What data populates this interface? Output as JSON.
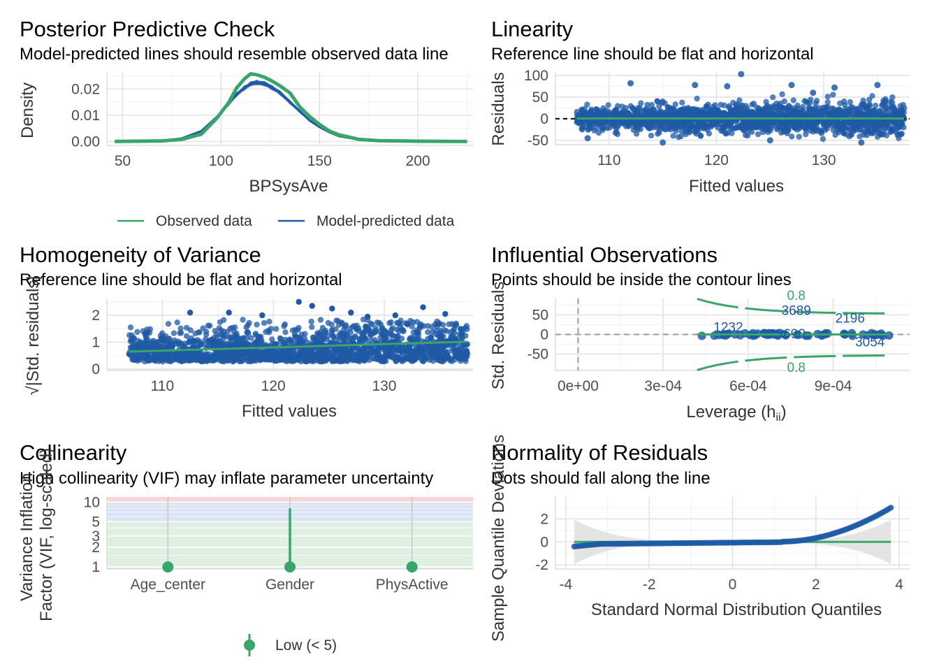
{
  "colors": {
    "green": "#3aa56b",
    "blue": "#1f5aa6",
    "red_zone": "#f6d6d6",
    "blue_zone": "#dbe4f3",
    "green_zone": "#dff0e3"
  },
  "chart_data": [
    {
      "id": "ppc",
      "type": "line",
      "title": "Posterior Predictive Check",
      "subtitle": "Model-predicted lines should resemble observed data line",
      "xlabel": "BPSysAve",
      "ylabel": "Density",
      "xlim": [
        42,
        228
      ],
      "ylim": [
        -0.0015,
        0.0265
      ],
      "xticks": [
        50,
        100,
        150,
        200
      ],
      "xtick_labels": [
        "50",
        "100",
        "150",
        "200"
      ],
      "yticks": [
        0.0,
        0.01,
        0.02
      ],
      "ytick_labels": [
        "0.00",
        "0.01",
        "0.02"
      ],
      "legend_position": "bottom",
      "series": [
        {
          "name": "Observed data",
          "x": [
            46,
            70,
            80,
            90,
            98,
            104,
            108,
            112,
            115,
            118,
            122,
            126,
            130,
            135,
            140,
            145,
            150,
            155,
            160,
            170,
            180,
            200,
            225
          ],
          "y": [
            0,
            0.0002,
            0.0008,
            0.0028,
            0.009,
            0.015,
            0.0205,
            0.024,
            0.0258,
            0.0255,
            0.0245,
            0.023,
            0.0212,
            0.0185,
            0.0132,
            0.0095,
            0.0065,
            0.004,
            0.0025,
            0.0008,
            0.0003,
            0.0001,
            0
          ]
        },
        {
          "name": "Model-predicted data",
          "x": [
            46,
            70,
            80,
            90,
            98,
            104,
            108,
            112,
            115,
            118,
            122,
            126,
            130,
            135,
            140,
            145,
            150,
            155,
            160,
            170,
            180,
            200,
            225
          ],
          "y": [
            0,
            0.0003,
            0.0012,
            0.004,
            0.0095,
            0.0145,
            0.018,
            0.0205,
            0.022,
            0.0225,
            0.022,
            0.0205,
            0.0185,
            0.015,
            0.0115,
            0.008,
            0.0055,
            0.0035,
            0.002,
            0.0007,
            0.0002,
            5e-05,
            0
          ]
        }
      ]
    },
    {
      "id": "linearity",
      "type": "scatter",
      "title": "Linearity",
      "subtitle": "Reference line should be flat and horizontal",
      "xlabel": "Fitted values",
      "ylabel": "Residuals",
      "xlim": [
        105,
        138
      ],
      "ylim": [
        -60,
        108
      ],
      "xticks": [
        110,
        120,
        130
      ],
      "xtick_labels": [
        "110",
        "120",
        "130"
      ],
      "yticks": [
        -50,
        0,
        50,
        100
      ],
      "ytick_labels": [
        "-50",
        "0",
        "50",
        "100"
      ],
      "reference_line": 0,
      "outliers": [
        [
          112,
          82
        ],
        [
          115,
          -55
        ],
        [
          118,
          78
        ],
        [
          121,
          75
        ],
        [
          122.3,
          103
        ],
        [
          125,
          -50
        ],
        [
          127,
          78
        ],
        [
          133.5,
          -55
        ],
        [
          131,
          72
        ],
        [
          135,
          78
        ],
        [
          108,
          -45
        ],
        [
          129,
          60
        ]
      ]
    },
    {
      "id": "homogeneity",
      "type": "scatter",
      "title": "Homogeneity of Variance",
      "subtitle": "Reference line should be flat and horizontal",
      "xlabel": "Fitted values",
      "ylabel": "√|Std. residuals|",
      "xlim": [
        105,
        138
      ],
      "ylim": [
        -0.05,
        2.6
      ],
      "xticks": [
        110,
        120,
        130
      ],
      "xtick_labels": [
        "110",
        "120",
        "130"
      ],
      "yticks": [
        0,
        1,
        2
      ],
      "ytick_labels": [
        "0",
        "1",
        "2"
      ],
      "trend": {
        "x": [
          107,
          137.5
        ],
        "y": [
          0.65,
          1.02
        ]
      },
      "outliers": [
        [
          112.5,
          2.1
        ],
        [
          116,
          2.1
        ],
        [
          119,
          2.0
        ],
        [
          122.3,
          2.5
        ],
        [
          123.5,
          2.35
        ],
        [
          125.3,
          2.25
        ],
        [
          127,
          2.1
        ],
        [
          131,
          2.0
        ],
        [
          133.5,
          2.3
        ],
        [
          135.5,
          2.05
        ],
        [
          128.5,
          1.95
        ]
      ]
    },
    {
      "id": "influential",
      "type": "scatter",
      "title": "Influential Observations",
      "subtitle": "Points should be inside the contour lines",
      "xlabel": "Leverage (h",
      "xlabel_sub": "ii",
      "xlabel_end": ")",
      "ylabel": "Std. Residuals",
      "xlim": [
        -8e-05,
        0.00117
      ],
      "ylim": [
        -92,
        92
      ],
      "xticks": [
        0,
        0.0003,
        0.0006,
        0.0009
      ],
      "xtick_labels": [
        "0e+00",
        "3e-04",
        "6e-04",
        "9e-04"
      ],
      "yticks": [
        -50,
        0,
        50
      ],
      "ytick_labels": [
        "-50",
        "0",
        "50"
      ],
      "point_range": [
        0.00042,
        0.0011
      ],
      "labels": [
        {
          "text": "1232",
          "x": 0.00053,
          "y": 7
        },
        {
          "text": "3689",
          "x": 0.00077,
          "y": 50
        },
        {
          "text": "2196",
          "x": 0.00096,
          "y": 30
        },
        {
          "text": "3690",
          "x": 0.00075,
          "y": -10
        },
        {
          "text": "3054",
          "x": 0.00103,
          "y": -30
        }
      ],
      "contour_labels": [
        "0.8",
        "0.8"
      ]
    },
    {
      "id": "collinearity",
      "type": "scatter",
      "title": "Collinearity",
      "subtitle": "High collinearity (VIF) may inflate parameter uncertainty",
      "xlabel": "",
      "ylabel": "Variance Inflation\nFactor (VIF, log-scaled)",
      "categories": [
        "Age_center",
        "Gender",
        "PhysActive"
      ],
      "vif": [
        1.0,
        1.0,
        1.0
      ],
      "ci_upper": [
        1.0,
        8.0,
        1.0
      ],
      "yscale": "log",
      "ylim": [
        0.93,
        12
      ],
      "yticks": [
        1,
        2,
        3,
        5,
        10
      ],
      "ytick_labels": [
        "1",
        "2",
        "3",
        "5",
        "10"
      ],
      "zones": {
        "low_max": 5,
        "moderate_max": 10
      },
      "legend": "Low (< 5)"
    },
    {
      "id": "normality",
      "type": "scatter",
      "title": "Normality of Residuals",
      "subtitle": "Dots should fall along the line",
      "xlabel": "Standard Normal Distribution Quantiles",
      "ylabel": "Sample Quantile Deviations",
      "xlim": [
        -4.25,
        4.25
      ],
      "ylim": [
        -2.35,
        3.9
      ],
      "xticks": [
        -4,
        -2,
        0,
        2,
        4
      ],
      "xtick_labels": [
        "-4",
        "-2",
        "0",
        "2",
        "4"
      ],
      "yticks": [
        -2,
        0,
        2
      ],
      "ytick_labels": [
        "-2",
        "0",
        "2"
      ],
      "reference_line": 0
    }
  ]
}
